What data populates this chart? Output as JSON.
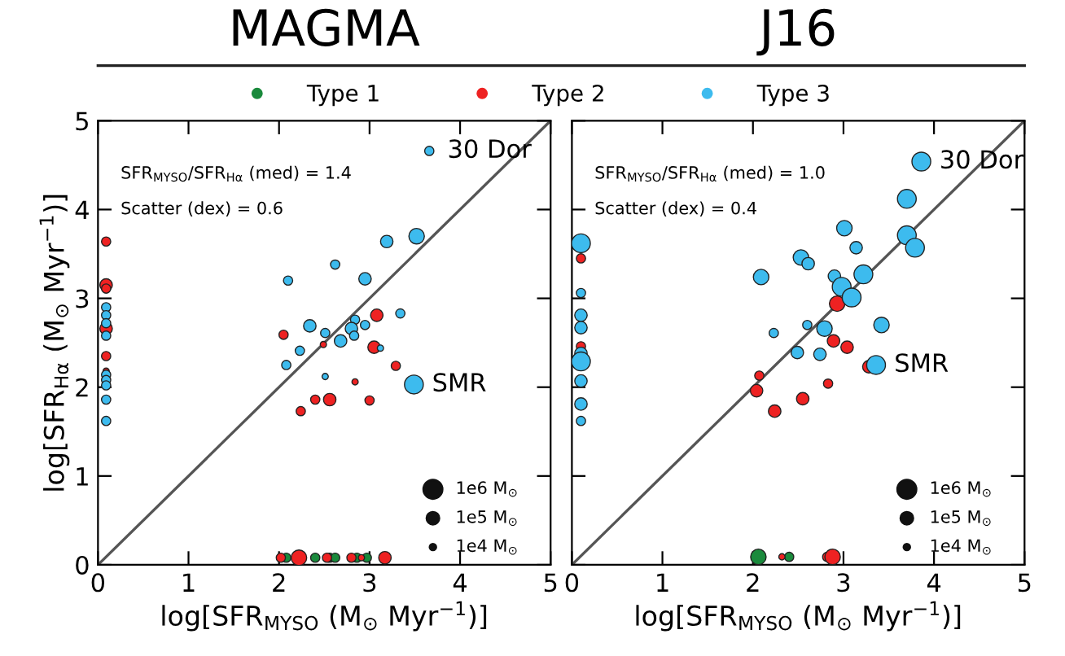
{
  "chart_data": [
    {
      "type": "bubble",
      "title": "MAGMA",
      "xlabel": "log[SFR$_{MYSO}$ (M$_{⊙}$ Myr$^{−1}$)]",
      "ylabel": "log[SFR$_{Hα}$ (M$_{⊙}$ Myr$^{−1}$)]",
      "xlim": [
        0,
        5
      ],
      "ylim": [
        0,
        5
      ],
      "xticks": [
        0,
        1,
        2,
        3,
        4,
        5
      ],
      "yticks": [
        0,
        1,
        2,
        3,
        4,
        5
      ],
      "grid": false,
      "legend": "top",
      "marker": "circle",
      "size_legend": [
        {
          "value": 1,
          "label": "1e6 M$_{⊙}$"
        },
        {
          "value": 0.44,
          "label": "1e5 M$_{⊙}$"
        },
        {
          "value": 0.11,
          "label": "1e4 M$_{⊙}$"
        }
      ],
      "annotations": [
        "SFR$_{MYSO}$/SFR$_{Hα}$ (med) = 1.4",
        "Scatter (dex) = 0.6",
        {
          "text": "30 Dor",
          "x": 3.66,
          "y": 4.66
        },
        {
          "text": "SMR",
          "x": 3.49,
          "y": 2.03
        }
      ],
      "series": [
        {
          "type": "line",
          "marker": "none",
          "color": "#555555",
          "x": [
            0,
            5
          ],
          "values": [
            0,
            5
          ]
        },
        {
          "name": "Type 1",
          "color": "#1a8a3c",
          "x": [
            2.08,
            2.4,
            2.56,
            2.62,
            2.86,
            2.97
          ],
          "values": [
            0.08,
            0.08,
            0.08,
            0.08,
            0.08,
            0.08
          ],
          "sizes": [
            0.24,
            0.24,
            0.24,
            0.24,
            0.24,
            0.24
          ]
        },
        {
          "name": "Type 2",
          "color": "#ee2222",
          "x": [
            3.08,
            2.05,
            2.49,
            3.05,
            3.29,
            2.84,
            2.4,
            2.56,
            3.0,
            2.24,
            2.02,
            2.22,
            2.53,
            2.8,
            2.91,
            3.17,
            0.09,
            0.09,
            0.09,
            0.09,
            0.09,
            0.09
          ],
          "values": [
            2.81,
            2.59,
            2.48,
            2.45,
            2.24,
            2.06,
            1.86,
            1.86,
            1.85,
            1.73,
            0.08,
            0.08,
            0.08,
            0.08,
            0.08,
            0.08,
            3.64,
            3.15,
            3.11,
            2.66,
            2.35,
            2.18
          ],
          "sizes": [
            0.44,
            0.24,
            0.11,
            0.44,
            0.24,
            0.11,
            0.24,
            0.44,
            0.24,
            0.24,
            0.24,
            0.68,
            0.24,
            0.24,
            0.11,
            0.44,
            0.24,
            0.44,
            0.24,
            0.44,
            0.24,
            0.11
          ]
        },
        {
          "name": "Type 3",
          "color": "#3dbbee",
          "x": [
            3.66,
            3.52,
            3.19,
            2.62,
            2.1,
            2.95,
            3.34,
            2.84,
            2.34,
            2.51,
            2.8,
            2.95,
            2.83,
            2.68,
            2.23,
            3.12,
            2.08,
            2.51,
            3.49,
            0.09,
            0.09,
            0.09,
            0.09,
            0.09,
            0.09,
            0.09,
            0.09,
            0.09
          ],
          "values": [
            4.66,
            3.7,
            3.64,
            3.38,
            3.2,
            3.22,
            2.83,
            2.76,
            2.69,
            2.61,
            2.66,
            2.7,
            2.58,
            2.52,
            2.41,
            2.44,
            2.25,
            2.12,
            2.03,
            2.9,
            2.81,
            2.72,
            2.58,
            2.14,
            2.08,
            2.02,
            1.86,
            1.62
          ],
          "sizes": [
            0.24,
            0.68,
            0.44,
            0.24,
            0.24,
            0.44,
            0.24,
            0.24,
            0.44,
            0.24,
            0.44,
            0.24,
            0.24,
            0.44,
            0.24,
            0.11,
            0.24,
            0.11,
            1,
            0.24,
            0.24,
            0.24,
            0.24,
            0.24,
            0.24,
            0.24,
            0.24,
            0.24
          ]
        }
      ]
    },
    {
      "type": "bubble",
      "title": "J16",
      "xlabel": "log[SFR$_{MYSO}$ (M$_{⊙}$ Myr$^{−1}$)]",
      "xlim": [
        0,
        5
      ],
      "ylim": [
        0,
        5
      ],
      "xticks": [
        0,
        1,
        2,
        3,
        4,
        5
      ],
      "yticks": [
        0,
        1,
        2,
        3,
        4,
        5
      ],
      "tick_labels": "x",
      "grid": false,
      "legend": "top",
      "marker": "circle",
      "size_legend": [
        {
          "value": 1,
          "label": "1e6 M$_{⊙}$"
        },
        {
          "value": 0.44,
          "label": "1e5 M$_{⊙}$"
        },
        {
          "value": 0.11,
          "label": "1e4 M$_{⊙}$"
        }
      ],
      "annotations": [
        "SFR$_{MYSO}$/SFR$_{Hα}$ (med) = 1.0",
        "Scatter (dex) = 0.4",
        {
          "text": "30 Dor",
          "x": 3.86,
          "y": 4.54
        },
        {
          "text": "SMR",
          "x": 3.36,
          "y": 2.25
        }
      ],
      "series": [
        {
          "type": "line",
          "marker": "none",
          "color": "#555555",
          "x": [
            0,
            5
          ],
          "values": [
            0,
            5
          ]
        },
        {
          "name": "Type 1",
          "color": "#1a8a3c",
          "x": [
            2.06,
            2.4
          ],
          "values": [
            0.09,
            0.09
          ],
          "sizes": [
            0.68,
            0.24
          ]
        },
        {
          "name": "Type 2",
          "color": "#ee2222",
          "x": [
            2.93,
            2.89,
            3.04,
            3.28,
            2.07,
            2.04,
            2.83,
            2.55,
            2.24,
            2.32,
            2.82,
            2.88,
            0.1,
            0.1
          ],
          "values": [
            2.94,
            2.52,
            2.45,
            2.23,
            2.13,
            1.96,
            2.04,
            1.87,
            1.73,
            0.09,
            0.09,
            0.09,
            3.45,
            2.46
          ],
          "sizes": [
            0.68,
            0.44,
            0.44,
            0.44,
            0.24,
            0.44,
            0.24,
            0.44,
            0.44,
            0.11,
            0.24,
            0.68,
            0.24,
            0.24
          ]
        },
        {
          "name": "Type 3",
          "color": "#3dbbee",
          "x": [
            3.86,
            3.7,
            3.01,
            3.7,
            3.79,
            3.14,
            2.53,
            2.61,
            2.09,
            2.9,
            3.22,
            2.98,
            3.09,
            3.42,
            2.79,
            2.6,
            2.23,
            2.49,
            2.74,
            3.36,
            0.1,
            0.1,
            0.1,
            0.1,
            0.1,
            0.1,
            0.1,
            0.1,
            0.1
          ],
          "values": [
            4.54,
            4.12,
            3.79,
            3.71,
            3.57,
            3.57,
            3.46,
            3.39,
            3.24,
            3.25,
            3.27,
            3.13,
            3.01,
            2.7,
            2.66,
            2.7,
            2.61,
            2.39,
            2.37,
            2.25,
            3.62,
            3.06,
            2.81,
            2.67,
            2.38,
            2.29,
            2.07,
            1.81,
            1.62
          ],
          "sizes": [
            1,
            1,
            0.68,
            1,
            1,
            0.44,
            0.68,
            0.44,
            0.68,
            0.44,
            1,
            1,
            1,
            0.68,
            0.68,
            0.24,
            0.24,
            0.44,
            0.44,
            1,
            1,
            0.24,
            0.44,
            0.44,
            0.44,
            1,
            0.44,
            0.44,
            0.24
          ]
        }
      ]
    }
  ]
}
